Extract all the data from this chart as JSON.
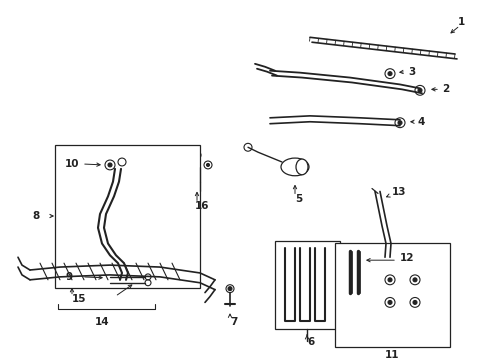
{
  "background_color": "#ffffff",
  "fig_width": 4.89,
  "fig_height": 3.6,
  "dpi": 100,
  "line_color": "#222222",
  "label_fontsize": 7.5
}
